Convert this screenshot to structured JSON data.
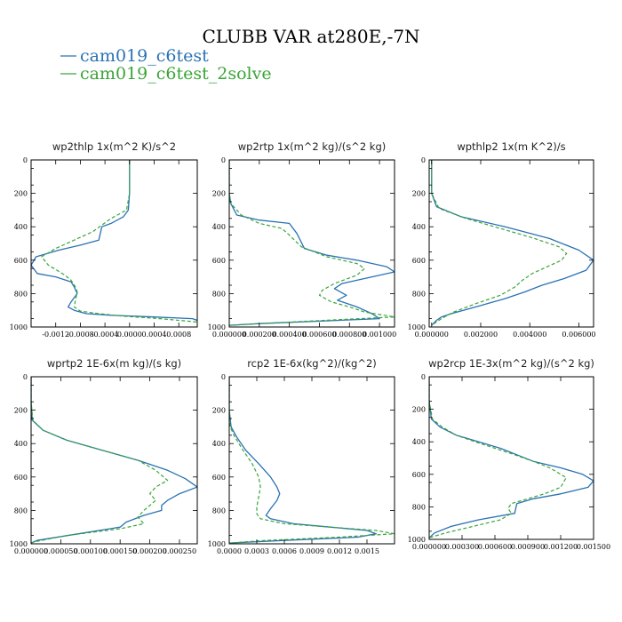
{
  "title": "CLUBB VAR at280E,-7N",
  "legend": [
    {
      "label": "cam019_c6test",
      "color": "#2a72b4",
      "dash": "solid"
    },
    {
      "label": "cam019_c6test_2solve",
      "color": "#3aa537",
      "dash": "dashed"
    }
  ],
  "chart_data": [
    {
      "type": "line",
      "title": "wp2thlp  1x(m^2 K)/s^2",
      "xlim": [
        -0.0016,
        0.0011
      ],
      "ylim": [
        0,
        1000
      ],
      "xticks": [
        -0.0012,
        -0.0008,
        -0.0004,
        0.0,
        0.0004,
        0.0008
      ],
      "xtick_labels": [
        "-0.0012",
        "-0.0008",
        "-0.0004",
        "0.0000",
        "0.0004",
        "0.0008"
      ],
      "yticks": [
        0,
        200,
        400,
        600,
        800,
        1000
      ],
      "ytick_labels": [
        "0",
        "200",
        "400",
        "600",
        "800",
        "1000"
      ],
      "series": [
        {
          "name": "cam019_c6test",
          "x": [
            0,
            0,
            0,
            -2e-05,
            -0.0001,
            -0.0003,
            -0.00045,
            -0.0005,
            -0.0008,
            -0.00115,
            -0.00152,
            -0.0016,
            -0.0015,
            -0.0012,
            -0.00095,
            -0.0009,
            -0.00085,
            -0.00095,
            -0.001,
            -0.0009,
            -0.0007,
            -0.0003,
            0.0004,
            0.00102,
            0.0011
          ],
          "y": [
            0,
            100,
            200,
            300,
            340,
            380,
            400,
            480,
            510,
            540,
            580,
            630,
            680,
            700,
            730,
            760,
            800,
            850,
            880,
            900,
            920,
            930,
            940,
            950,
            960
          ]
        },
        {
          "name": "cam019_c6test_2solve",
          "x": [
            0,
            0,
            0,
            -5e-05,
            -0.0003,
            -0.0006,
            -0.0009,
            -0.0012,
            -0.00143,
            -0.00132,
            -0.00118,
            -0.00105,
            -0.00095,
            -0.00088,
            -0.00085,
            -0.00088,
            -0.0009,
            -0.0008,
            -0.0005,
            -0.0001,
            0.0005,
            0.0011
          ],
          "y": [
            0,
            100,
            200,
            300,
            350,
            430,
            480,
            530,
            580,
            630,
            660,
            690,
            720,
            760,
            790,
            840,
            880,
            905,
            920,
            935,
            950,
            970
          ]
        }
      ]
    },
    {
      "type": "line",
      "title": "wp2rtp  1x(m^2 kg)/(s^2 kg)",
      "xlim": [
        0,
        0.0011
      ],
      "ylim": [
        0,
        1000
      ],
      "xticks": [
        0,
        0.0002,
        0.0004,
        0.0006,
        0.0008,
        0.001
      ],
      "xtick_labels": [
        "0.000000",
        "0.000200",
        "0.000400",
        "0.000600",
        "0.000800",
        "0.001000"
      ],
      "yticks": [
        0,
        200,
        400,
        600,
        800,
        1000
      ],
      "ytick_labels": [
        "0",
        "200",
        "400",
        "600",
        "800",
        "1000"
      ],
      "series": [
        {
          "name": "cam019_c6test",
          "x": [
            0,
            0,
            0,
            1e-05,
            5e-05,
            0.0002,
            0.0004,
            0.00045,
            0.0005,
            0.00065,
            0.00085,
            0.00105,
            0.0011,
            0.00095,
            0.00075,
            0.0007,
            0.00078,
            0.00072,
            0.00085,
            0.00095,
            0.001,
            0.0002,
            0
          ],
          "y": [
            0,
            100,
            200,
            260,
            330,
            360,
            380,
            440,
            530,
            570,
            600,
            640,
            670,
            700,
            740,
            770,
            810,
            840,
            880,
            920,
            950,
            980,
            990
          ]
        },
        {
          "name": "cam019_c6test_2solve",
          "x": [
            0,
            0,
            0,
            1e-05,
            8e-05,
            0.0002,
            0.00035,
            0.0004,
            0.00048,
            0.00065,
            0.00085,
            0.0009,
            0.00085,
            0.0007,
            0.00062,
            0.0006,
            0.00068,
            0.0008,
            0.0009,
            0.0011,
            0.0003,
            0
          ],
          "y": [
            0,
            100,
            200,
            260,
            330,
            380,
            410,
            450,
            520,
            580,
            620,
            650,
            690,
            740,
            780,
            810,
            850,
            880,
            910,
            940,
            975,
            990
          ]
        }
      ]
    },
    {
      "type": "line",
      "title": "wpthlp2  1x(m K^2)/s",
      "xlim": [
        -0.0001,
        0.0066
      ],
      "ylim": [
        0,
        1000
      ],
      "xticks": [
        0,
        0.002,
        0.004,
        0.006
      ],
      "xtick_labels": [
        "0.000000",
        "0.002000",
        "0.004000",
        "0.006000"
      ],
      "yticks": [
        0,
        200,
        400,
        600,
        800,
        1000
      ],
      "ytick_labels": [
        "0",
        "200",
        "400",
        "600",
        "800",
        "1000"
      ],
      "series": [
        {
          "name": "cam019_c6test",
          "x": [
            0,
            0,
            0,
            0.0002,
            0.0012,
            0.003,
            0.0048,
            0.006,
            0.0066,
            0.0063,
            0.0054,
            0.0045,
            0.0038,
            0.003,
            0.0018,
            0.0008,
            0.0004,
            0.0002,
            0
          ],
          "y": [
            0,
            100,
            200,
            280,
            340,
            400,
            470,
            540,
            600,
            660,
            710,
            750,
            790,
            830,
            880,
            920,
            940,
            960,
            990
          ]
        },
        {
          "name": "cam019_c6test_2solve",
          "x": [
            0,
            0,
            0,
            0.0003,
            0.0014,
            0.0028,
            0.0042,
            0.0052,
            0.0055,
            0.0053,
            0.0047,
            0.0041,
            0.0037,
            0.0034,
            0.0028,
            0.0018,
            0.0009,
            0.0004,
            0
          ],
          "y": [
            0,
            100,
            200,
            290,
            350,
            410,
            470,
            520,
            560,
            600,
            640,
            680,
            720,
            760,
            810,
            860,
            910,
            950,
            990
          ]
        }
      ]
    },
    {
      "type": "line",
      "title": "wprtp2  1E-6x(m kg)/(s kg)",
      "xlim": [
        0,
        0.00028
      ],
      "ylim": [
        0,
        1000
      ],
      "xticks": [
        0,
        5e-05,
        0.0001,
        0.00015,
        0.0002,
        0.00025
      ],
      "xtick_labels": [
        "0.000000",
        "0.000050",
        "0.000100",
        "0.000150",
        "0.000200",
        "0.000250"
      ],
      "yticks": [
        0,
        200,
        400,
        600,
        800,
        1000
      ],
      "ytick_labels": [
        "0",
        "200",
        "400",
        "600",
        "800",
        "1000"
      ],
      "series": [
        {
          "name": "cam019_c6test",
          "x": [
            0,
            0,
            2e-06,
            2e-05,
            6e-05,
            0.00012,
            0.00018,
            0.00023,
            0.00026,
            0.00028,
            0.00025,
            0.00023,
            0.00022,
            0.00022,
            0.00019,
            0.00016,
            0.00015,
            8e-05,
            1e-05,
            0
          ],
          "y": [
            0,
            150,
            260,
            320,
            380,
            440,
            500,
            560,
            610,
            660,
            700,
            740,
            770,
            800,
            830,
            870,
            900,
            940,
            980,
            995
          ]
        },
        {
          "name": "cam019_c6test_2solve",
          "x": [
            0,
            0,
            3e-06,
            2e-05,
            6e-05,
            0.00012,
            0.00018,
            0.00021,
            0.00023,
            0.00021,
            0.0002,
            0.00021,
            0.0002,
            0.00019,
            0.00018,
            0.00019,
            0.00015,
            6e-05,
            1e-05,
            0
          ],
          "y": [
            0,
            150,
            260,
            320,
            380,
            440,
            500,
            560,
            620,
            660,
            700,
            740,
            770,
            800,
            840,
            880,
            910,
            950,
            985,
            995
          ]
        }
      ]
    },
    {
      "type": "line",
      "title": "rcp2  1E-6x(kg^2)/(kg^2)",
      "xlim": [
        0,
        0.0018
      ],
      "ylim": [
        0,
        1000
      ],
      "xticks": [
        0,
        0.0003,
        0.0006,
        0.0009,
        0.0012,
        0.0015
      ],
      "xtick_labels": [
        "0.0000",
        "0.0003",
        "0.0006",
        "0.0009",
        "0.0012",
        "0.0015"
      ],
      "yticks": [
        0,
        200,
        400,
        600,
        800,
        1000
      ],
      "ytick_labels": [
        "0",
        "200",
        "400",
        "600",
        "800",
        "1000"
      ],
      "series": [
        {
          "name": "cam019_c6test",
          "x": [
            0,
            0,
            2e-05,
            8e-05,
            0.00018,
            0.00032,
            0.00045,
            0.00052,
            0.00055,
            0.00052,
            0.00045,
            0.0004,
            0.00045,
            0.0007,
            0.0011,
            0.0015,
            0.0016,
            0.0014,
            0.0006,
            0
          ],
          "y": [
            0,
            200,
            300,
            360,
            440,
            520,
            600,
            660,
            700,
            740,
            790,
            830,
            850,
            880,
            900,
            920,
            940,
            960,
            980,
            995
          ]
        },
        {
          "name": "cam019_c6test_2solve",
          "x": [
            0,
            0,
            1e-05,
            6e-05,
            0.00015,
            0.00025,
            0.00032,
            0.00034,
            0.00032,
            0.0003,
            0.0003,
            0.00034,
            0.0006,
            0.0011,
            0.0016,
            0.0018,
            0.0012,
            0.0004,
            0
          ],
          "y": [
            0,
            200,
            300,
            360,
            440,
            520,
            600,
            660,
            720,
            780,
            820,
            850,
            880,
            900,
            920,
            940,
            960,
            980,
            995
          ]
        }
      ]
    },
    {
      "type": "line",
      "title": "wp2rcp  1E-3x(m^2 kg)/(s^2 kg)",
      "xlim": [
        0,
        0.0015
      ],
      "ylim": [
        0,
        1000
      ],
      "xticks": [
        0,
        0.0003,
        0.0006,
        0.0009,
        0.0012,
        0.0015
      ],
      "xtick_labels": [
        "0.000000",
        "0.000300",
        "0.000600",
        "0.000900",
        "0.001200",
        "0.001500"
      ],
      "yticks": [
        0,
        200,
        400,
        600,
        800,
        1000
      ],
      "ytick_labels": [
        "0",
        "200",
        "400",
        "600",
        "800",
        "1000"
      ],
      "series": [
        {
          "name": "cam019_c6test",
          "x": [
            0,
            0,
            2e-05,
            0.0001,
            0.00025,
            0.00035,
            0.0005,
            0.00065,
            0.0008,
            0.00095,
            0.0012,
            0.0014,
            0.0015,
            0.00145,
            0.0012,
            0.00095,
            0.0008,
            0.00078,
            0.00045,
            0.0002,
            5e-05,
            0
          ],
          "y": [
            0,
            150,
            260,
            310,
            360,
            380,
            410,
            440,
            480,
            520,
            560,
            600,
            640,
            680,
            720,
            750,
            780,
            840,
            880,
            920,
            960,
            990
          ]
        },
        {
          "name": "cam019_c6test_2solve",
          "x": [
            0,
            0,
            3e-05,
            0.00012,
            0.00025,
            0.00042,
            0.0006,
            0.00078,
            0.00095,
            0.0011,
            0.00125,
            0.0012,
            0.00105,
            0.0009,
            0.00075,
            0.00072,
            0.00075,
            0.00065,
            0.0004,
            0.00015,
            0
          ],
          "y": [
            0,
            150,
            260,
            310,
            360,
            400,
            440,
            480,
            520,
            560,
            620,
            680,
            720,
            750,
            780,
            810,
            840,
            880,
            920,
            960,
            990
          ]
        }
      ]
    }
  ]
}
